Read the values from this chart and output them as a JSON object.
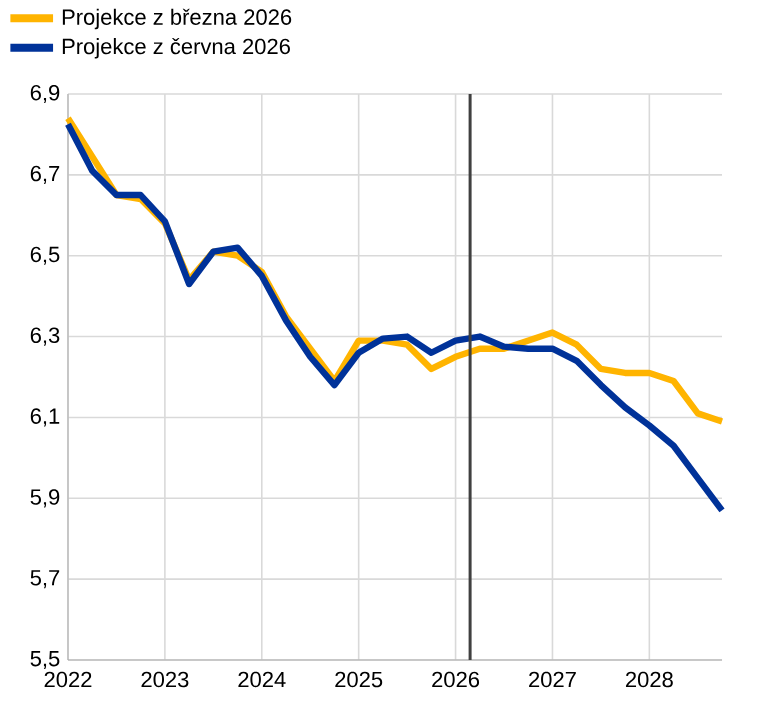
{
  "chart_data": {
    "type": "line",
    "x": [
      2022,
      2022.25,
      2022.5,
      2022.75,
      2023,
      2023.25,
      2023.5,
      2023.75,
      2024,
      2024.25,
      2024.5,
      2024.75,
      2025,
      2025.25,
      2025.5,
      2025.75,
      2026,
      2026.25,
      2026.5,
      2026.75,
      2027,
      2027.25,
      2027.5,
      2027.75,
      2028,
      2028.25,
      2028.5,
      2028.75
    ],
    "series": [
      {
        "name": "Projekce z března 2026",
        "color": "#ffb400",
        "values": [
          6.84,
          null,
          6.65,
          6.64,
          6.58,
          6.44,
          6.51,
          6.5,
          6.46,
          6.35,
          6.27,
          6.19,
          6.29,
          6.29,
          6.28,
          6.22,
          6.25,
          6.27,
          6.27,
          6.29,
          6.31,
          6.28,
          6.22,
          6.21,
          6.21,
          6.19,
          6.11,
          6.09
        ]
      },
      {
        "name": "Projekce z června 2026",
        "color": "#003299",
        "values": [
          6.825,
          6.71,
          6.65,
          6.65,
          6.585,
          6.43,
          6.51,
          6.52,
          6.45,
          6.34,
          6.25,
          6.18,
          6.26,
          6.295,
          6.3,
          6.26,
          6.29,
          6.3,
          6.275,
          6.27,
          6.27,
          6.24,
          6.18,
          6.125,
          6.08,
          6.03,
          5.95,
          5.87
        ]
      }
    ],
    "xlim": [
      2022,
      2028.75
    ],
    "xticks": [
      2022,
      2023,
      2024,
      2025,
      2026,
      2027,
      2028
    ],
    "ylim": [
      5.5,
      6.9
    ],
    "yticks": [
      {
        "value": 5.5,
        "label": "5,5"
      },
      {
        "value": 5.7,
        "label": "5,7"
      },
      {
        "value": 5.9,
        "label": "5,9"
      },
      {
        "value": 6.1,
        "label": "6,1"
      },
      {
        "value": 6.3,
        "label": "6,3"
      },
      {
        "value": 6.5,
        "label": "6,5"
      },
      {
        "value": 6.7,
        "label": "6,7"
      },
      {
        "value": 6.9,
        "label": "6,9"
      }
    ],
    "ref_lines": [
      {
        "axis": "x",
        "value": 2026.15,
        "color": "#404040"
      }
    ],
    "grid": true,
    "legend": "top left",
    "marker": "none",
    "line_style": "solid"
  }
}
